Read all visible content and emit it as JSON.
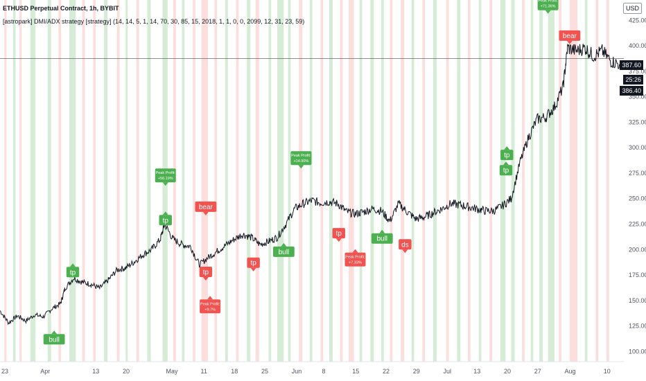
{
  "header": {
    "title": "ETHUSD Perpetual Contract, 1h, BYBIT",
    "subtitle": "[astropark] DMI/ADX strategy [strategy] (14, 14, 5, 1, 14, 70, 30, 85, 15, 2018, 1, 1, 0, 0, 2099, 12, 31, 23, 59)",
    "currency": "USD"
  },
  "price_tags": {
    "current": "387.60",
    "timer": "25:26",
    "last": "386.40"
  },
  "chart_data": {
    "type": "line",
    "title": "ETHUSD Perpetual Contract, 1h, BYBIT",
    "ylim": [
      90,
      445
    ],
    "xlim": [
      0,
      144
    ],
    "y_ticks": [
      100,
      125,
      150,
      175,
      200,
      225,
      250,
      275,
      300,
      325,
      350,
      375,
      400,
      425
    ],
    "x_tick_labels": [
      {
        "x": 0,
        "label": "23"
      },
      {
        "x": 9,
        "label": "Apr"
      },
      {
        "x": 21,
        "label": "13"
      },
      {
        "x": 28,
        "label": "20"
      },
      {
        "x": 38,
        "label": "May"
      },
      {
        "x": 46,
        "label": "11"
      },
      {
        "x": 53,
        "label": "18"
      },
      {
        "x": 60,
        "label": "25"
      },
      {
        "x": 67,
        "label": "Jun"
      },
      {
        "x": 74,
        "label": "8"
      },
      {
        "x": 81,
        "label": "15"
      },
      {
        "x": 88,
        "label": "22"
      },
      {
        "x": 95,
        "label": "29"
      },
      {
        "x": 102,
        "label": "Jul"
      },
      {
        "x": 109,
        "label": "13"
      },
      {
        "x": 116,
        "label": "20"
      },
      {
        "x": 123,
        "label": "27"
      },
      {
        "x": 130,
        "label": "Aug"
      },
      {
        "x": 139,
        "label": "10"
      }
    ],
    "series": [
      {
        "price": [
          [
            0,
            140
          ],
          [
            2,
            128
          ],
          [
            4,
            135
          ],
          [
            6,
            130
          ],
          [
            8,
            136
          ],
          [
            10,
            134
          ],
          [
            12,
            142
          ],
          [
            14,
            147
          ],
          [
            15,
            162
          ],
          [
            17,
            172
          ],
          [
            19,
            168
          ],
          [
            21,
            166
          ],
          [
            23,
            162
          ],
          [
            25,
            170
          ],
          [
            27,
            180
          ],
          [
            29,
            182
          ],
          [
            31,
            188
          ],
          [
            33,
            195
          ],
          [
            35,
            200
          ],
          [
            37,
            210
          ],
          [
            38,
            225
          ],
          [
            40,
            210
          ],
          [
            42,
            205
          ],
          [
            44,
            203
          ],
          [
            46,
            185
          ],
          [
            48,
            192
          ],
          [
            50,
            198
          ],
          [
            52,
            204
          ],
          [
            54,
            210
          ],
          [
            56,
            215
          ],
          [
            58,
            212
          ],
          [
            60,
            205
          ],
          [
            62,
            208
          ],
          [
            64,
            212
          ],
          [
            66,
            225
          ],
          [
            68,
            240
          ],
          [
            70,
            245
          ],
          [
            72,
            248
          ],
          [
            74,
            246
          ],
          [
            76,
            247
          ],
          [
            78,
            245
          ],
          [
            80,
            237
          ],
          [
            82,
            235
          ],
          [
            84,
            237
          ],
          [
            86,
            240
          ],
          [
            88,
            238
          ],
          [
            90,
            228
          ],
          [
            92,
            245
          ],
          [
            94,
            237
          ],
          [
            96,
            230
          ],
          [
            98,
            232
          ],
          [
            100,
            236
          ],
          [
            102,
            240
          ],
          [
            104,
            245
          ],
          [
            106,
            244
          ],
          [
            108,
            242
          ],
          [
            110,
            240
          ],
          [
            112,
            238
          ],
          [
            114,
            238
          ],
          [
            116,
            243
          ],
          [
            118,
            250
          ],
          [
            120,
            285
          ],
          [
            122,
            310
          ],
          [
            124,
            328
          ],
          [
            126,
            330
          ],
          [
            128,
            340
          ],
          [
            130,
            360
          ],
          [
            131,
            398
          ],
          [
            133,
            395
          ],
          [
            135,
            398
          ],
          [
            137,
            390
          ],
          [
            139,
            395
          ],
          [
            141,
            385
          ],
          [
            143,
            382
          ]
        ]
      }
    ],
    "horizontal_line": 387.6,
    "signal_labels": [
      {
        "x": 12.5,
        "y": 117,
        "text": "bull",
        "kind": "bull",
        "dir": "up"
      },
      {
        "x": 16.8,
        "y": 183,
        "text": "tp",
        "kind": "bull",
        "dir": "up"
      },
      {
        "x": 38.2,
        "y": 234,
        "text": "tp",
        "kind": "bull",
        "dir": "up"
      },
      {
        "x": 47.5,
        "y": 237,
        "text": "bear",
        "kind": "bear",
        "dir": "down"
      },
      {
        "x": 47.5,
        "y": 173,
        "text": "tp",
        "kind": "bear",
        "dir": "down"
      },
      {
        "x": 58.5,
        "y": 182,
        "text": "tp",
        "kind": "bear",
        "dir": "down"
      },
      {
        "x": 65.5,
        "y": 203,
        "text": "bull",
        "kind": "bull",
        "dir": "up"
      },
      {
        "x": 78.2,
        "y": 211,
        "text": "tp",
        "kind": "bear",
        "dir": "down"
      },
      {
        "x": 88.2,
        "y": 216,
        "text": "bull",
        "kind": "bull",
        "dir": "up"
      },
      {
        "x": 93.5,
        "y": 200,
        "text": "ds",
        "kind": "bear",
        "dir": "down"
      },
      {
        "x": 116.8,
        "y": 283,
        "text": "tp",
        "kind": "bull",
        "dir": "up"
      },
      {
        "x": 117.0,
        "y": 298,
        "text": "tp",
        "kind": "bull",
        "dir": "up"
      },
      {
        "x": 131.5,
        "y": 405,
        "text": "bear",
        "kind": "bear",
        "dir": "down"
      }
    ],
    "peak_labels": [
      {
        "x": 38.2,
        "y": 266,
        "lines": [
          "Peak Profit:",
          "+56.19%"
        ],
        "kind": "bull"
      },
      {
        "x": 48.5,
        "y": 151,
        "lines": [
          "Peak Profit:",
          "+9.7%"
        ],
        "kind": "bear"
      },
      {
        "x": 69.5,
        "y": 283,
        "lines": [
          "Peak Profit:",
          "+14.90%"
        ],
        "kind": "bull"
      },
      {
        "x": 82.0,
        "y": 197,
        "lines": [
          "Peak Profit:",
          "+7.33%"
        ],
        "kind": "bear"
      },
      {
        "x": 126.5,
        "y": 435,
        "lines": [
          "Peak Profit:",
          "+71.36%"
        ],
        "kind": "bull"
      }
    ],
    "bands": [
      {
        "x": 1,
        "w": 0.5,
        "c": "r"
      },
      {
        "x": 3,
        "w": 0.6,
        "c": "g"
      },
      {
        "x": 4.5,
        "w": 0.5,
        "c": "r"
      },
      {
        "x": 7,
        "w": 1.2,
        "c": "g"
      },
      {
        "x": 11,
        "w": 0.8,
        "c": "g"
      },
      {
        "x": 13.5,
        "w": 0.6,
        "c": "r"
      },
      {
        "x": 16,
        "w": 1.5,
        "c": "g"
      },
      {
        "x": 19,
        "w": 0.6,
        "c": "r"
      },
      {
        "x": 21.5,
        "w": 0.6,
        "c": "r"
      },
      {
        "x": 24,
        "w": 0.8,
        "c": "g"
      },
      {
        "x": 27,
        "w": 0.6,
        "c": "r"
      },
      {
        "x": 29,
        "w": 0.5,
        "c": "g"
      },
      {
        "x": 31.5,
        "w": 0.6,
        "c": "r"
      },
      {
        "x": 34,
        "w": 0.8,
        "c": "g"
      },
      {
        "x": 37.5,
        "w": 1.2,
        "c": "g"
      },
      {
        "x": 40,
        "w": 0.6,
        "c": "r"
      },
      {
        "x": 42,
        "w": 0.6,
        "c": "g"
      },
      {
        "x": 44.5,
        "w": 0.6,
        "c": "r"
      },
      {
        "x": 46.5,
        "w": 1.5,
        "c": "r"
      },
      {
        "x": 49.5,
        "w": 0.6,
        "c": "r"
      },
      {
        "x": 52,
        "w": 0.6,
        "c": "g"
      },
      {
        "x": 54.5,
        "w": 0.6,
        "c": "r"
      },
      {
        "x": 57,
        "w": 0.8,
        "c": "g"
      },
      {
        "x": 59,
        "w": 0.8,
        "c": "r"
      },
      {
        "x": 62,
        "w": 0.6,
        "c": "g"
      },
      {
        "x": 64,
        "w": 1.5,
        "c": "g"
      },
      {
        "x": 66.5,
        "w": 0.6,
        "c": "g"
      },
      {
        "x": 69,
        "w": 0.8,
        "c": "r"
      },
      {
        "x": 71.5,
        "w": 0.6,
        "c": "g"
      },
      {
        "x": 74,
        "w": 0.6,
        "c": "r"
      },
      {
        "x": 76,
        "w": 0.8,
        "c": "g"
      },
      {
        "x": 78.5,
        "w": 0.6,
        "c": "r"
      },
      {
        "x": 80.5,
        "w": 1.2,
        "c": "r"
      },
      {
        "x": 83,
        "w": 0.6,
        "c": "g"
      },
      {
        "x": 85.5,
        "w": 0.8,
        "c": "g"
      },
      {
        "x": 88,
        "w": 0.6,
        "c": "g"
      },
      {
        "x": 90,
        "w": 0.6,
        "c": "r"
      },
      {
        "x": 92.5,
        "w": 0.8,
        "c": "r"
      },
      {
        "x": 95,
        "w": 0.6,
        "c": "g"
      },
      {
        "x": 97.5,
        "w": 0.6,
        "c": "r"
      },
      {
        "x": 100,
        "w": 0.8,
        "c": "g"
      },
      {
        "x": 103,
        "w": 0.6,
        "c": "r"
      },
      {
        "x": 105.5,
        "w": 0.8,
        "c": "g"
      },
      {
        "x": 108,
        "w": 0.6,
        "c": "r"
      },
      {
        "x": 110.5,
        "w": 0.6,
        "c": "g"
      },
      {
        "x": 113,
        "w": 0.6,
        "c": "r"
      },
      {
        "x": 115.5,
        "w": 1.2,
        "c": "g"
      },
      {
        "x": 118,
        "w": 0.8,
        "c": "g"
      },
      {
        "x": 120.5,
        "w": 0.6,
        "c": "r"
      },
      {
        "x": 122.5,
        "w": 0.6,
        "c": "g"
      },
      {
        "x": 124.5,
        "w": 0.8,
        "c": "g"
      },
      {
        "x": 126.5,
        "w": 1.5,
        "c": "g"
      },
      {
        "x": 129,
        "w": 0.6,
        "c": "r"
      },
      {
        "x": 131.5,
        "w": 1.8,
        "c": "r"
      },
      {
        "x": 135,
        "w": 0.6,
        "c": "g"
      },
      {
        "x": 137.5,
        "w": 0.6,
        "c": "r"
      },
      {
        "x": 140,
        "w": 0.6,
        "c": "r"
      }
    ],
    "colors": {
      "bull": "#4caf50",
      "bear": "#f05350",
      "band_green": "#c8e6c9",
      "band_red": "#fbd3d2",
      "line": "#131722",
      "axis_text": "#50535e"
    }
  }
}
